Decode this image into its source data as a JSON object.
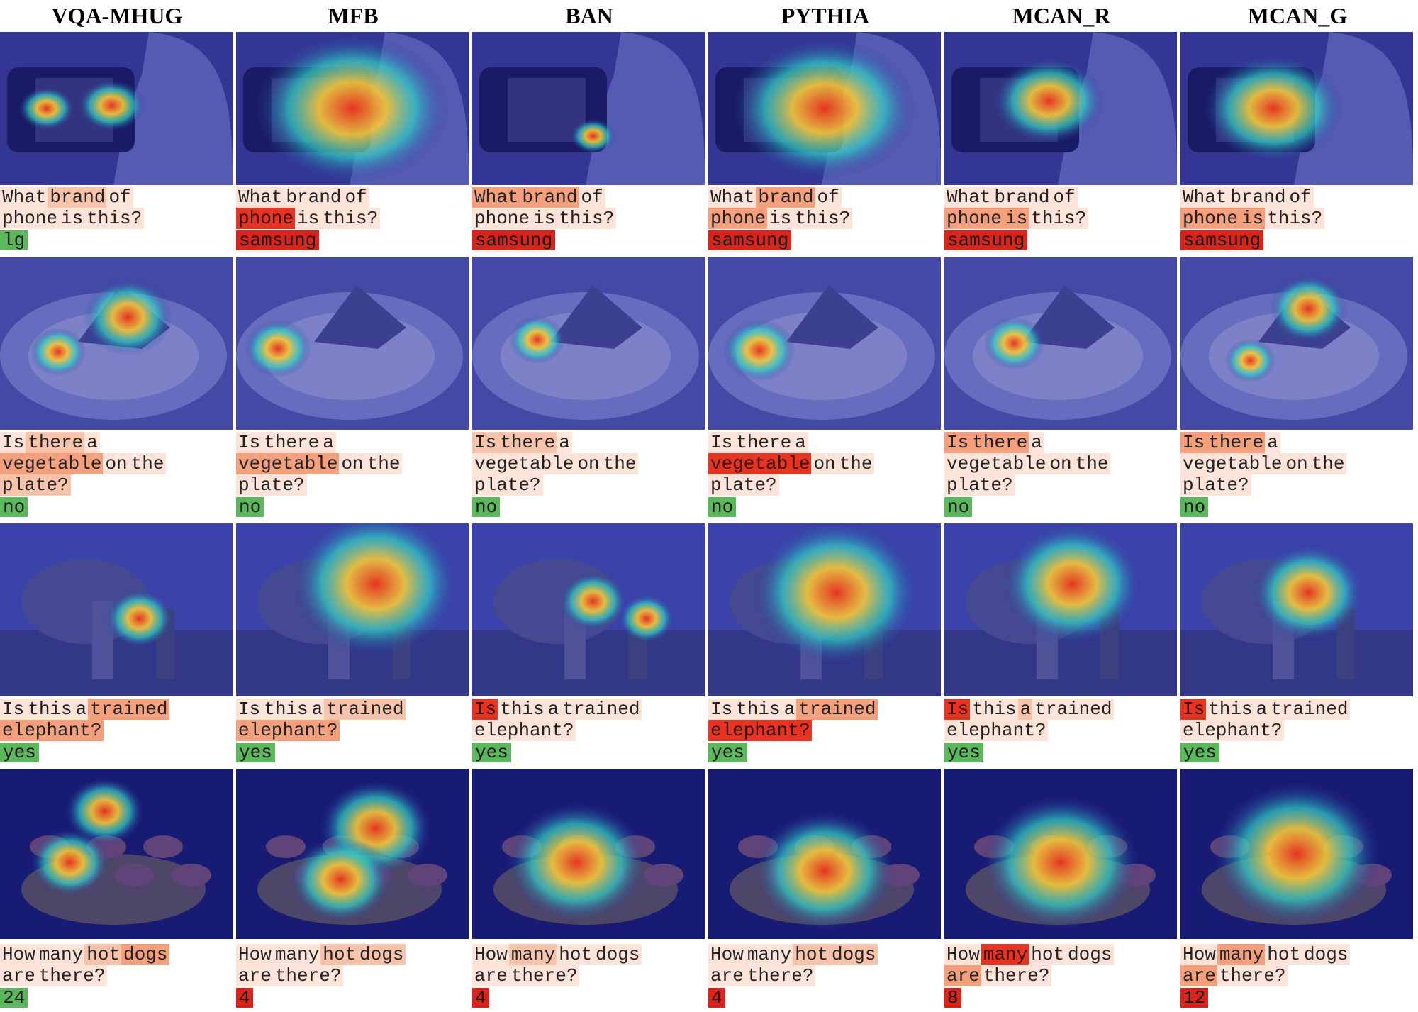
{
  "columns": [
    "VQA-MHUG",
    "MFB",
    "BAN",
    "PYTHIA",
    "MCAN_R",
    "MCAN_G"
  ],
  "colors": {
    "heat_low": "#2a2f9a",
    "heat_mid": "#2fd2c8",
    "heat_high": "#e53422",
    "token_hot": "#e53422",
    "token_warm": "#f4a07c",
    "token_light": "#fde3d8",
    "answer_correct": "#5cb85c",
    "answer_wrong": "#d9241c"
  },
  "rows": [
    {
      "scene": "phone held in hand showing a screen",
      "question_lines": [
        [
          "What",
          "brand",
          "of"
        ],
        [
          "phone",
          "is",
          "this?"
        ]
      ],
      "cells": [
        {
          "weights": [
            [
              0.05,
              0.45,
              0.2
            ],
            [
              0.05,
              0.05,
              0.1
            ]
          ],
          "answer": "lg",
          "correct": true
        },
        {
          "weights": [
            [
              0.05,
              0.05,
              0.05
            ],
            [
              1.0,
              0.05,
              0.1
            ]
          ],
          "answer": "samsung",
          "correct": false
        },
        {
          "weights": [
            [
              0.5,
              0.5,
              0.1
            ],
            [
              0.05,
              0.05,
              0.05
            ]
          ],
          "answer": "samsung",
          "correct": false
        },
        {
          "weights": [
            [
              0.05,
              0.5,
              0.1
            ],
            [
              0.8,
              0.05,
              0.1
            ]
          ],
          "answer": "samsung",
          "correct": false
        },
        {
          "weights": [
            [
              0.05,
              0.05,
              0.05
            ],
            [
              0.8,
              0.8,
              0.1
            ]
          ],
          "answer": "samsung",
          "correct": false
        },
        {
          "weights": [
            [
              0.05,
              0.05,
              0.05
            ],
            [
              0.8,
              0.8,
              0.1
            ]
          ],
          "answer": "samsung",
          "correct": false
        }
      ]
    },
    {
      "scene": "pastry slice on a white plate",
      "question_lines": [
        [
          "Is",
          "there",
          "a"
        ],
        [
          "vegetable",
          "on",
          "the"
        ],
        [
          "plate?"
        ]
      ],
      "cells": [
        {
          "weights": [
            [
              0.05,
              0.35,
              0.05
            ],
            [
              0.5,
              0.1,
              0.1
            ],
            [
              0.35
            ]
          ],
          "answer": "no",
          "correct": true
        },
        {
          "weights": [
            [
              0.1,
              0.05,
              0.05
            ],
            [
              0.6,
              0.05,
              0.05
            ],
            [
              0.05
            ]
          ],
          "answer": "no",
          "correct": true
        },
        {
          "weights": [
            [
              0.45,
              0.45,
              0.05
            ],
            [
              0.05,
              0.05,
              0.05
            ],
            [
              0.05
            ]
          ],
          "answer": "no",
          "correct": true
        },
        {
          "weights": [
            [
              0.05,
              0.05,
              0.05
            ],
            [
              1.0,
              0.05,
              0.05
            ],
            [
              0.1
            ]
          ],
          "answer": "no",
          "correct": true
        },
        {
          "weights": [
            [
              0.7,
              0.7,
              0.1
            ],
            [
              0.05,
              0.05,
              0.05
            ],
            [
              0.05
            ]
          ],
          "answer": "no",
          "correct": true
        },
        {
          "weights": [
            [
              0.7,
              0.7,
              0.1
            ],
            [
              0.05,
              0.05,
              0.05
            ],
            [
              0.05
            ]
          ],
          "answer": "no",
          "correct": true
        }
      ]
    },
    {
      "scene": "elephant with two people among trees",
      "question_lines": [
        [
          "Is",
          "this",
          "a",
          "trained"
        ],
        [
          "elephant?"
        ]
      ],
      "cells": [
        {
          "weights": [
            [
              0.05,
              0.05,
              0.05,
              0.6
            ],
            [
              0.8
            ]
          ],
          "answer": "yes",
          "correct": true
        },
        {
          "weights": [
            [
              0.05,
              0.05,
              0.05,
              0.35
            ],
            [
              0.8
            ]
          ],
          "answer": "yes",
          "correct": true
        },
        {
          "weights": [
            [
              1.0,
              0.1,
              0.1,
              0.1
            ],
            [
              0.1
            ]
          ],
          "answer": "yes",
          "correct": true
        },
        {
          "weights": [
            [
              0.05,
              0.05,
              0.05,
              0.6
            ],
            [
              0.9
            ]
          ],
          "answer": "yes",
          "correct": true
        },
        {
          "weights": [
            [
              0.9,
              0.05,
              0.4,
              0.05
            ],
            [
              0.05
            ]
          ],
          "answer": "yes",
          "correct": true
        },
        {
          "weights": [
            [
              1.0,
              0.05,
              0.05,
              0.05
            ],
            [
              0.05
            ]
          ],
          "answer": "yes",
          "correct": true
        }
      ]
    },
    {
      "scene": "plates of hot dogs with toppings",
      "question_lines": [
        [
          "How",
          "many",
          "hot",
          "dogs"
        ],
        [
          "are",
          "there?"
        ]
      ],
      "cells": [
        {
          "weights": [
            [
              0.05,
              0.05,
              0.4,
              0.5
            ],
            [
              0.1,
              0.05
            ]
          ],
          "answer": "24",
          "correct": true
        },
        {
          "weights": [
            [
              0.05,
              0.05,
              0.45,
              0.45
            ],
            [
              0.05,
              0.05
            ]
          ],
          "answer": "4",
          "correct": false
        },
        {
          "weights": [
            [
              0.05,
              0.45,
              0.05,
              0.05
            ],
            [
              0.05,
              0.05
            ]
          ],
          "answer": "4",
          "correct": false
        },
        {
          "weights": [
            [
              0.05,
              0.05,
              0.35,
              0.35
            ],
            [
              0.05,
              0.05
            ]
          ],
          "answer": "4",
          "correct": false
        },
        {
          "weights": [
            [
              0.05,
              0.9,
              0.05,
              0.05
            ],
            [
              0.6,
              0.05
            ]
          ],
          "answer": "8",
          "correct": false
        },
        {
          "weights": [
            [
              0.05,
              0.6,
              0.05,
              0.05
            ],
            [
              0.5,
              0.05
            ]
          ],
          "answer": "12",
          "correct": false
        }
      ]
    }
  ]
}
